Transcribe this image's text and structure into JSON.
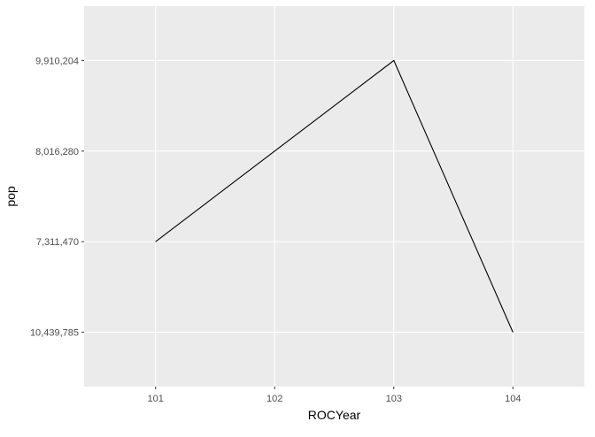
{
  "chart_data": {
    "type": "line",
    "xlabel": "ROCYear",
    "ylabel": "pop",
    "x_categories": [
      "101",
      "102",
      "103",
      "104"
    ],
    "y_categories": [
      "10,439,785",
      "7,311,470",
      "8,016,280",
      "9,910,204"
    ],
    "series": [
      {
        "points": [
          {
            "x": "101",
            "y": "7,311,470"
          },
          {
            "x": "102",
            "y": "8,016,280"
          },
          {
            "x": "103",
            "y": "9,910,204"
          },
          {
            "x": "104",
            "y": "10,439,785"
          }
        ]
      }
    ],
    "grid": true,
    "colors": {
      "panel_background": "#ebebeb",
      "grid_major": "#ffffff",
      "line": "#000000",
      "tick_text": "#4d4d4d",
      "axis_title": "#000000"
    }
  }
}
